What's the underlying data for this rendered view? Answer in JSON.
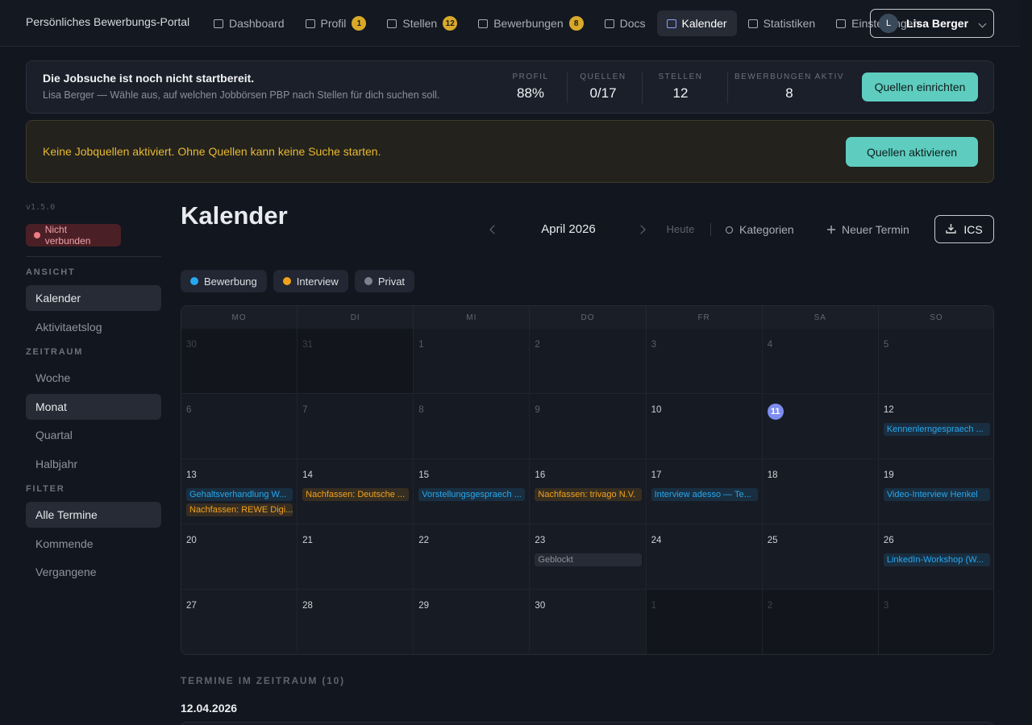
{
  "header": {
    "brand": "Persönliches Bewerbungs-Portal",
    "nav": [
      {
        "label": "Dashboard"
      },
      {
        "label": "Profil",
        "badge": 1
      },
      {
        "label": "Stellen",
        "badge": 12
      },
      {
        "label": "Bewerbungen",
        "badge": 8
      },
      {
        "label": "Docs"
      },
      {
        "label": "Kalender",
        "active": true
      },
      {
        "label": "Statistiken"
      },
      {
        "label": "Einstellungen"
      }
    ],
    "user": {
      "initial": "L",
      "name": "Lisa Berger"
    }
  },
  "status": {
    "title": "Die Jobsuche ist noch nicht startbereit.",
    "subtitle": "Lisa Berger — Wähle aus, auf welchen Jobbörsen PBP nach Stellen für dich suchen soll.",
    "stats": [
      {
        "label": "PROFIL",
        "value": "88%"
      },
      {
        "label": "QUELLEN",
        "value": "0/17"
      },
      {
        "label": "STELLEN",
        "value": 12
      },
      {
        "label": "BEWERBUNGEN AKTIV",
        "value": 8
      }
    ],
    "button": "Quellen einrichten"
  },
  "warning": {
    "text": "Keine Jobquellen aktiviert. Ohne Quellen kann keine Suche starten.",
    "button": "Quellen aktivieren"
  },
  "sidebar": {
    "version": "v1.5.0",
    "connection": "Nicht verbunden",
    "groups": [
      {
        "title": "ANSICHT",
        "items": [
          {
            "label": "Kalender",
            "active": true
          },
          {
            "label": "Aktivitaetslog"
          }
        ]
      },
      {
        "title": "ZEITRAUM",
        "items": [
          {
            "label": "Woche"
          },
          {
            "label": "Monat",
            "active": true
          },
          {
            "label": "Quartal"
          },
          {
            "label": "Halbjahr"
          }
        ]
      },
      {
        "title": "FILTER",
        "items": [
          {
            "label": "Alle Termine",
            "active": true
          },
          {
            "label": "Kommende"
          },
          {
            "label": "Vergangene"
          }
        ]
      }
    ]
  },
  "calendar": {
    "title": "Kalender",
    "month": "April 2026",
    "today_button": "Heute",
    "categories_button": "Kategorien",
    "new_button": "Neuer Termin",
    "export_button": "ICS",
    "legend": [
      {
        "label": "Bewerbung",
        "color": "#27a7ee"
      },
      {
        "label": "Interview",
        "color": "#f2a21c"
      },
      {
        "label": "Privat",
        "color": "#7c828e"
      }
    ],
    "weekdays": [
      "MO",
      "DI",
      "MI",
      "DO",
      "FR",
      "SA",
      "SO"
    ],
    "days": [
      {
        "day": 30,
        "muted": true
      },
      {
        "day": 31,
        "muted": true
      },
      {
        "day": 1
      },
      {
        "day": 2
      },
      {
        "day": 3
      },
      {
        "day": 4
      },
      {
        "day": 5
      },
      {
        "day": 6
      },
      {
        "day": 7
      },
      {
        "day": 8
      },
      {
        "day": 9
      },
      {
        "day": 10
      },
      {
        "day": 11,
        "today": true
      },
      {
        "day": 12,
        "events": [
          {
            "title": "Kennenlerngespraech ...",
            "color": "#27a7ee"
          }
        ]
      },
      {
        "day": 13,
        "events": [
          {
            "title": "Gehaltsverhandlung W...",
            "color": "#27a7ee"
          },
          {
            "title": "Nachfassen: REWE Digi...",
            "color": "#f2a21c"
          }
        ]
      },
      {
        "day": 14,
        "events": [
          {
            "title": "Nachfassen: Deutsche ...",
            "color": "#f2a21c"
          }
        ]
      },
      {
        "day": 15,
        "events": [
          {
            "title": "Vorstellungsgespraech ...",
            "color": "#27a7ee"
          }
        ]
      },
      {
        "day": 16,
        "events": [
          {
            "title": "Nachfassen: trivago N.V.",
            "color": "#f2a21c"
          }
        ]
      },
      {
        "day": 17,
        "events": [
          {
            "title": "Interview adesso — Te...",
            "color": "#27a7ee"
          }
        ]
      },
      {
        "day": 18
      },
      {
        "day": 19,
        "events": [
          {
            "title": "Video-Interview Henkel",
            "color": "#27a7ee"
          }
        ]
      },
      {
        "day": 20
      },
      {
        "day": 21
      },
      {
        "day": 22
      },
      {
        "day": 23,
        "events": [
          {
            "title": "Geblockt",
            "color": "#8a909b"
          }
        ]
      },
      {
        "day": 24
      },
      {
        "day": 25
      },
      {
        "day": 26,
        "events": [
          {
            "title": "LinkedIn-Workshop (W...",
            "color": "#27a7ee"
          }
        ]
      },
      {
        "day": 27
      },
      {
        "day": 28
      },
      {
        "day": 29
      },
      {
        "day": 30
      },
      {
        "day": 1,
        "muted": true
      },
      {
        "day": 2,
        "muted": true
      },
      {
        "day": 3,
        "muted": true
      }
    ]
  },
  "list": {
    "heading": "TERMINE IM ZEITRAUM (10)",
    "date": "12.04.2026"
  }
}
